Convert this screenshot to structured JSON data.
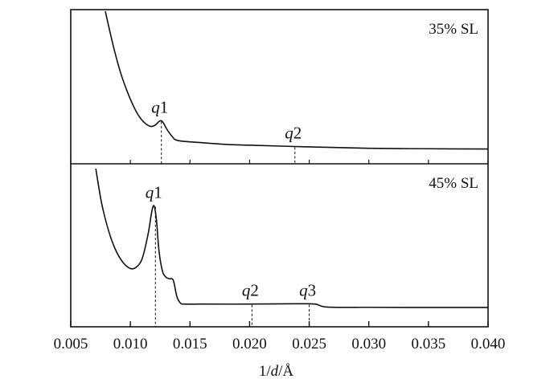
{
  "chart_data": {
    "type": "line",
    "xlabel": {
      "pre": "1/",
      "var": "d",
      "post": "/Å"
    },
    "xlim": [
      0.005,
      0.04
    ],
    "xticks": [
      "0.005",
      "0.010",
      "0.015",
      "0.020",
      "0.025",
      "0.030",
      "0.035",
      "0.040"
    ],
    "grid": false,
    "panels": [
      {
        "label": "35% SL",
        "ylim": [
          0,
          1
        ],
        "series": [
          {
            "x": [
              0.0079,
              0.0083,
              0.0087,
              0.0092,
              0.0097,
              0.0102,
              0.0107,
              0.0112,
              0.0117,
              0.0121,
              0.0124,
              0.0126,
              0.0128,
              0.0131,
              0.0135,
              0.014,
              0.016,
              0.018,
              0.02,
              0.025,
              0.03,
              0.035,
              0.04
            ],
            "y": [
              1.0,
              0.85,
              0.71,
              0.56,
              0.44,
              0.34,
              0.26,
              0.21,
              0.185,
              0.195,
              0.22,
              0.225,
              0.205,
              0.16,
              0.115,
              0.085,
              0.07,
              0.058,
              0.052,
              0.04,
              0.03,
              0.027,
              0.025
            ]
          }
        ],
        "peaks": [
          {
            "name": "q",
            "index": "1",
            "x": 0.0126,
            "y": 0.225
          },
          {
            "name": "q",
            "index": "2",
            "x": 0.0238,
            "y": 0.043
          }
        ]
      },
      {
        "label": "45% SL",
        "ylim": [
          0,
          1
        ],
        "series": [
          {
            "x": [
              0.0071,
              0.0076,
              0.0082,
              0.0088,
              0.0094,
              0.01,
              0.0105,
              0.011,
              0.0115,
              0.0118,
              0.012,
              0.0122,
              0.0124,
              0.0127,
              0.013,
              0.0133,
              0.0136,
              0.0139,
              0.0142,
              0.0145,
              0.016,
              0.02,
              0.024,
              0.0255,
              0.0265,
              0.03,
              0.035,
              0.04
            ],
            "y": [
              1.0,
              0.76,
              0.57,
              0.44,
              0.36,
              0.32,
              0.33,
              0.39,
              0.56,
              0.71,
              0.745,
              0.64,
              0.44,
              0.3,
              0.26,
              0.25,
              0.24,
              0.13,
              0.085,
              0.078,
              0.078,
              0.078,
              0.08,
              0.078,
              0.058,
              0.056,
              0.055,
              0.055
            ]
          }
        ],
        "peaks": [
          {
            "name": "q",
            "index": "1",
            "x": 0.0121,
            "y": 0.745
          },
          {
            "name": "q",
            "index": "2",
            "x": 0.0202,
            "y": 0.078
          },
          {
            "name": "q",
            "index": "3",
            "x": 0.025,
            "y": 0.079
          }
        ]
      }
    ]
  }
}
